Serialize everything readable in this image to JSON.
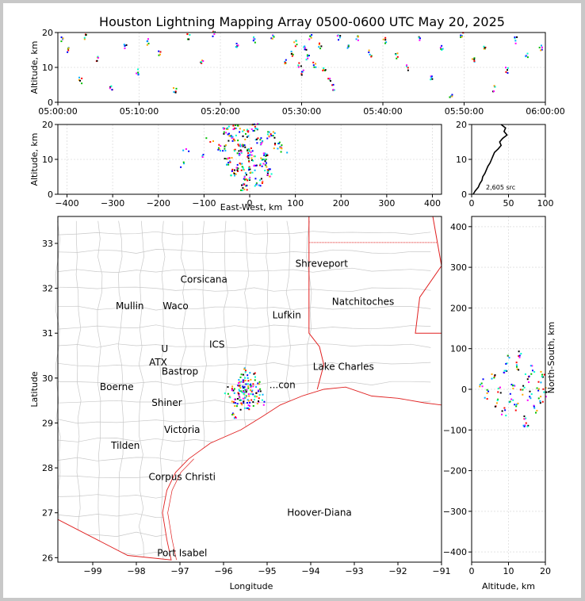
{
  "title": "Houston Lightning Mapping Array 0500-0600 UTC May 20, 2025",
  "colors": {
    "frame": "#c8c8c8",
    "state_line": "#e02020",
    "county_line": "#c8c8c8",
    "city_label": "#000000",
    "site_orange": "#ff8c33",
    "site_green": "#88dd44",
    "site_blue": "#1a1aff",
    "site_gold": "#ffb300",
    "histogram": "#000000"
  },
  "chart_data": [
    {
      "id": "altitude-time",
      "type": "scatter",
      "ylabel": "Altitude, km",
      "xlabel": "",
      "xlim": [
        "05:00:00",
        "06:00:00"
      ],
      "xticks": [
        "05:00:00",
        "05:10:00",
        "05:20:00",
        "05:30:00",
        "05:40:00",
        "05:50:00",
        "06:00:00"
      ],
      "ylim": [
        0,
        20
      ],
      "yticks": [
        "0",
        "10",
        "20"
      ],
      "grid": true,
      "points": [
        {
          "t": "05:00:30",
          "z": 18.4
        },
        {
          "t": "05:01:10",
          "z": 15.1
        },
        {
          "t": "05:02:40",
          "z": 6.5
        },
        {
          "t": "05:03:20",
          "z": 19.2
        },
        {
          "t": "05:04:50",
          "z": 12.8
        },
        {
          "t": "05:06:30",
          "z": 4.1
        },
        {
          "t": "05:08:10",
          "z": 16.3
        },
        {
          "t": "05:09:40",
          "z": 9.0
        },
        {
          "t": "05:11:00",
          "z": 17.5
        },
        {
          "t": "05:12:30",
          "z": 14.6
        },
        {
          "t": "05:14:20",
          "z": 3.7
        },
        {
          "t": "05:16:00",
          "z": 18.9
        },
        {
          "t": "05:17:40",
          "z": 11.4
        },
        {
          "t": "05:19:10",
          "z": 19.6
        },
        {
          "t": "05:22:00",
          "z": 16.8
        },
        {
          "t": "05:24:10",
          "z": 18.1
        },
        {
          "t": "05:26:20",
          "z": 19.3
        },
        {
          "t": "05:27:50",
          "z": 12.2
        },
        {
          "t": "05:28:40",
          "z": 14.0
        },
        {
          "t": "05:29:10",
          "z": 17.2
        },
        {
          "t": "05:29:40",
          "z": 10.6
        },
        {
          "t": "05:30:00",
          "z": 8.8
        },
        {
          "t": "05:30:20",
          "z": 15.4
        },
        {
          "t": "05:30:40",
          "z": 12.9
        },
        {
          "t": "05:31:00",
          "z": 18.7
        },
        {
          "t": "05:31:30",
          "z": 11.1
        },
        {
          "t": "05:32:10",
          "z": 16.5
        },
        {
          "t": "05:32:40",
          "z": 9.7
        },
        {
          "t": "05:33:20",
          "z": 6.8
        },
        {
          "t": "05:33:50",
          "z": 4.5
        },
        {
          "t": "05:34:30",
          "z": 19.0
        },
        {
          "t": "05:35:40",
          "z": 15.8
        },
        {
          "t": "05:36:50",
          "z": 18.3
        },
        {
          "t": "05:38:20",
          "z": 14.2
        },
        {
          "t": "05:40:10",
          "z": 17.9
        },
        {
          "t": "05:41:40",
          "z": 13.6
        },
        {
          "t": "05:43:00",
          "z": 10.2
        },
        {
          "t": "05:44:30",
          "z": 18.6
        },
        {
          "t": "05:45:50",
          "z": 7.2
        },
        {
          "t": "05:47:10",
          "z": 15.9
        },
        {
          "t": "05:48:20",
          "z": 1.6
        },
        {
          "t": "05:49:40",
          "z": 19.4
        },
        {
          "t": "05:51:00",
          "z": 12.4
        },
        {
          "t": "05:52:30",
          "z": 16.1
        },
        {
          "t": "05:53:40",
          "z": 4.2
        },
        {
          "t": "05:55:10",
          "z": 9.3
        },
        {
          "t": "05:56:20",
          "z": 18.0
        },
        {
          "t": "05:57:40",
          "z": 13.5
        },
        {
          "t": "05:59:20",
          "z": 15.6
        }
      ]
    },
    {
      "id": "altitude-east-west",
      "type": "scatter",
      "xlabel": "East-West, km",
      "ylabel": "Altitude, km",
      "xlim": [
        -420,
        420
      ],
      "xticks": [
        "−400",
        "−300",
        "−200",
        "−100",
        "0",
        "100",
        "200",
        "300",
        "400"
      ],
      "ylim": [
        0,
        20
      ],
      "yticks": [
        "0",
        "10",
        "20"
      ],
      "grid": true,
      "points": [
        {
          "x": -55,
          "z": 18.5
        },
        {
          "x": -40,
          "z": 16.2
        },
        {
          "x": -30,
          "z": 19.1
        },
        {
          "x": -20,
          "z": 14.8
        },
        {
          "x": -10,
          "z": 17.6
        },
        {
          "x": 0,
          "z": 12.3
        },
        {
          "x": 10,
          "z": 19.4
        },
        {
          "x": 20,
          "z": 15.5
        },
        {
          "x": 30,
          "z": 11.2
        },
        {
          "x": 45,
          "z": 17.0
        },
        {
          "x": -48,
          "z": 9.8
        },
        {
          "x": -35,
          "z": 6.5
        },
        {
          "x": -22,
          "z": 8.1
        },
        {
          "x": -8,
          "z": 5.2
        },
        {
          "x": 5,
          "z": 7.4
        },
        {
          "x": 18,
          "z": 3.6
        },
        {
          "x": 28,
          "z": 9.1
        },
        {
          "x": -62,
          "z": 13.4
        },
        {
          "x": 60,
          "z": 14.2
        },
        {
          "x": -15,
          "z": 2.1
        },
        {
          "x": 2,
          "z": 10.6
        },
        {
          "x": -28,
          "z": 12.0
        },
        {
          "x": 38,
          "z": 6.3
        },
        {
          "x": -110,
          "z": 11.0
        },
        {
          "x": -140,
          "z": 13.5
        },
        {
          "x": -150,
          "z": 8.3
        },
        {
          "x": 75,
          "z": 12.7
        },
        {
          "x": -90,
          "z": 15.8
        }
      ]
    },
    {
      "id": "altitude-histogram",
      "type": "line",
      "xlim": [
        0,
        100
      ],
      "xticks": [
        "0",
        "50",
        "100"
      ],
      "ylim": [
        0,
        20
      ],
      "yticks": [
        "0",
        "10",
        "20"
      ],
      "grid": true,
      "annotation": "2,605 src",
      "profile": [
        {
          "count": 2,
          "z": 0
        },
        {
          "count": 5,
          "z": 1
        },
        {
          "count": 9,
          "z": 2
        },
        {
          "count": 11,
          "z": 3
        },
        {
          "count": 14,
          "z": 4
        },
        {
          "count": 15,
          "z": 5
        },
        {
          "count": 18,
          "z": 6
        },
        {
          "count": 20,
          "z": 7
        },
        {
          "count": 22,
          "z": 8
        },
        {
          "count": 25,
          "z": 9
        },
        {
          "count": 27,
          "z": 10
        },
        {
          "count": 29,
          "z": 11
        },
        {
          "count": 31,
          "z": 12
        },
        {
          "count": 36,
          "z": 13
        },
        {
          "count": 40,
          "z": 14
        },
        {
          "count": 38,
          "z": 15
        },
        {
          "count": 42,
          "z": 16
        },
        {
          "count": 48,
          "z": 17
        },
        {
          "count": 44,
          "z": 18
        },
        {
          "count": 46,
          "z": 19
        },
        {
          "count": 40,
          "z": 20
        }
      ]
    },
    {
      "id": "plan-view-map",
      "type": "scatter",
      "xlabel": "Longitude",
      "ylabel": "Latitude",
      "xlim": [
        -99.8,
        -91.0
      ],
      "xticks": [
        "−99",
        "−98",
        "−97",
        "−96",
        "−95",
        "−94",
        "−93",
        "−92",
        "−91"
      ],
      "ylim": [
        25.9,
        33.6
      ],
      "yticks": [
        "26",
        "27",
        "28",
        "29",
        "30",
        "31",
        "32",
        "33"
      ],
      "grid": false,
      "cities": [
        {
          "name": "Shreveport",
          "lon": -93.75,
          "lat": 32.55,
          "color": "#000000"
        },
        {
          "name": "Corsicana",
          "lon": -96.45,
          "lat": 32.2,
          "color": "#000000"
        },
        {
          "name": "Natchitoches",
          "lon": -92.8,
          "lat": 31.7,
          "color": "#000000"
        },
        {
          "name": "Mullin",
          "lon": -98.15,
          "lat": 31.6,
          "color": "#ff8c33"
        },
        {
          "name": "Waco",
          "lon": -97.1,
          "lat": 31.6,
          "color": "#000000"
        },
        {
          "name": "Lufkin",
          "lon": -94.55,
          "lat": 31.4,
          "color": "#000000"
        },
        {
          "name": "Lake Charles",
          "lon": -93.25,
          "lat": 30.25,
          "color": "#000000"
        },
        {
          "name": "Boerne",
          "lon": -98.45,
          "lat": 29.8,
          "color": "#000000"
        },
        {
          "name": "Shiner",
          "lon": -97.3,
          "lat": 29.45,
          "color": "#000000"
        },
        {
          "name": "Victoria",
          "lon": -96.95,
          "lat": 28.85,
          "color": "#000000"
        },
        {
          "name": "Tilden",
          "lon": -98.25,
          "lat": 28.5,
          "color": "#000000"
        },
        {
          "name": "Corpus Christi",
          "lon": -96.95,
          "lat": 27.8,
          "color": "#000000"
        },
        {
          "name": "Hoover-Diana",
          "lon": -93.8,
          "lat": 27.0,
          "color": "#1a1aff"
        },
        {
          "name": "Port Isabel",
          "lon": -96.95,
          "lat": 26.1,
          "color": "#000000"
        },
        {
          "name": "Bastrop",
          "lon": -97.0,
          "lat": 30.15,
          "color": "#000000"
        },
        {
          "name": "ATX",
          "lon": -97.5,
          "lat": 30.35,
          "color": "#ff8c33"
        },
        {
          "name": "U",
          "lon": -97.35,
          "lat": 30.65,
          "color": "#88dd44"
        },
        {
          "name": "ICS",
          "lon": -96.15,
          "lat": 30.75,
          "color": "#000000"
        },
        {
          "name": "...con",
          "lon": -94.65,
          "lat": 29.85,
          "color": "#ffb300"
        }
      ],
      "points": [
        {
          "lon": -95.7,
          "lat": 29.9
        },
        {
          "lon": -95.55,
          "lat": 29.8
        },
        {
          "lon": -95.45,
          "lat": 29.7
        },
        {
          "lon": -95.6,
          "lat": 29.6
        },
        {
          "lon": -95.35,
          "lat": 29.65
        },
        {
          "lon": -95.5,
          "lat": 30.0
        },
        {
          "lon": -95.75,
          "lat": 29.7
        },
        {
          "lon": -95.4,
          "lat": 29.45
        },
        {
          "lon": -95.25,
          "lat": 29.85
        },
        {
          "lon": -95.65,
          "lat": 29.5
        },
        {
          "lon": -95.55,
          "lat": 30.15
        },
        {
          "lon": -95.3,
          "lat": 29.55
        },
        {
          "lon": -95.8,
          "lat": 29.55
        },
        {
          "lon": -95.5,
          "lat": 29.35
        },
        {
          "lon": -95.2,
          "lat": 29.7
        },
        {
          "lon": -95.6,
          "lat": 29.95
        },
        {
          "lon": -95.45,
          "lat": 29.9
        },
        {
          "lon": -95.7,
          "lat": 29.4
        },
        {
          "lon": -95.35,
          "lat": 30.05
        },
        {
          "lon": -95.9,
          "lat": 29.75
        },
        {
          "lon": -95.15,
          "lat": 29.5
        },
        {
          "lon": -95.5,
          "lat": 29.55
        },
        {
          "lon": -95.6,
          "lat": 29.75
        },
        {
          "lon": -95.4,
          "lat": 29.8
        },
        {
          "lon": -95.75,
          "lat": 29.2
        }
      ]
    },
    {
      "id": "north-south-altitude",
      "type": "scatter",
      "xlabel": "Altitude, km",
      "ylabel": "North-South, km",
      "xlim": [
        0,
        20
      ],
      "xticks": [
        "0",
        "10",
        "20"
      ],
      "ylim": [
        -425,
        425
      ],
      "yticks": [
        "−400",
        "−300",
        "−200",
        "−100",
        "0",
        "100",
        "200",
        "300",
        "400"
      ],
      "grid": true,
      "points": [
        {
          "z": 2.5,
          "y": 20
        },
        {
          "z": 4.0,
          "y": -10
        },
        {
          "z": 5.5,
          "y": 35
        },
        {
          "z": 6.5,
          "y": -30
        },
        {
          "z": 7.5,
          "y": 5
        },
        {
          "z": 8.5,
          "y": -55
        },
        {
          "z": 9.0,
          "y": 45
        },
        {
          "z": 10.5,
          "y": -20
        },
        {
          "z": 11.0,
          "y": 15
        },
        {
          "z": 12.0,
          "y": -40
        },
        {
          "z": 12.5,
          "y": 60
        },
        {
          "z": 13.5,
          "y": 0
        },
        {
          "z": 14.0,
          "y": -70
        },
        {
          "z": 15.0,
          "y": 30
        },
        {
          "z": 15.5,
          "y": -15
        },
        {
          "z": 16.5,
          "y": 50
        },
        {
          "z": 17.0,
          "y": -45
        },
        {
          "z": 18.0,
          "y": 10
        },
        {
          "z": 18.5,
          "y": -25
        },
        {
          "z": 19.0,
          "y": 40
        },
        {
          "z": 19.5,
          "y": -5
        },
        {
          "z": 13.0,
          "y": 90
        },
        {
          "z": 14.5,
          "y": -95
        },
        {
          "z": 9.5,
          "y": 75
        }
      ]
    }
  ]
}
